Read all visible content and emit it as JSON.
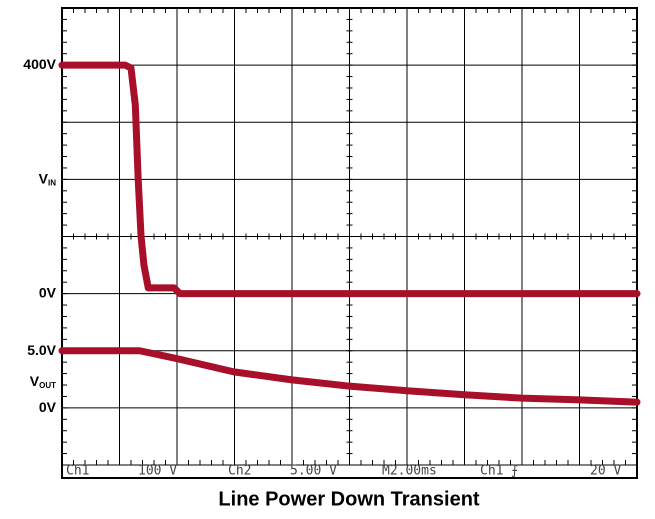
{
  "chart_data": {
    "type": "line",
    "title": "Line Power Down Transient",
    "xlim": [
      0,
      20
    ],
    "xticks": [
      0,
      2,
      4,
      6,
      8,
      10,
      12,
      14,
      16,
      18,
      20
    ],
    "ylim": [
      0,
      8
    ],
    "ygrid": [
      0,
      1,
      2,
      3,
      4,
      5,
      6,
      7,
      8
    ],
    "yticks": [
      {
        "value": 7,
        "label": "400V"
      },
      {
        "value": 5,
        "label": "V",
        "sub": "IN"
      },
      {
        "value": 3,
        "label": "0V"
      },
      {
        "value": 2,
        "label": "5.0V"
      },
      {
        "value": 1.45,
        "label": "V",
        "sub": "OUT"
      },
      {
        "value": 1,
        "label": "0V"
      }
    ],
    "grid": true,
    "status": [
      "Ch1",
      "100 V",
      "Ch2",
      "5.00 V",
      "M2.00ms",
      "Ch1 ⨍",
      "20 V"
    ],
    "series": [
      {
        "color": "#a8102a",
        "x": [
          0,
          2.2,
          2.4,
          2.55,
          2.65,
          2.75,
          2.85,
          3.0,
          3.9,
          4.1,
          20
        ],
        "values": [
          7,
          7,
          6.95,
          6.3,
          5.0,
          4.0,
          3.5,
          3.1,
          3.1,
          3.0,
          3.0
        ]
      },
      {
        "color": "#a8102a",
        "x": [
          0,
          2.7,
          3.93,
          5.98,
          8,
          10,
          12,
          14,
          16,
          18,
          20
        ],
        "values": [
          2.0,
          2.0,
          1.87,
          1.63,
          1.49,
          1.38,
          1.3,
          1.23,
          1.17,
          1.14,
          1.1
        ]
      }
    ]
  }
}
